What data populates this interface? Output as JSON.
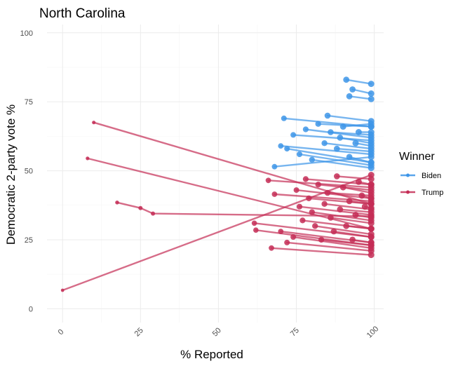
{
  "chart_data": {
    "type": "line",
    "title": "North Carolina",
    "xlabel": "% Reported",
    "ylabel": "Democratic 2-party vote %",
    "xlim": [
      -5,
      103
    ],
    "ylim": [
      -5,
      103
    ],
    "x_ticks": [
      "0",
      "25",
      "50",
      "75",
      "100"
    ],
    "y_ticks": [
      "0",
      "25",
      "50",
      "75",
      "100"
    ],
    "x_tick_rotation_deg": -45,
    "grid": true,
    "legend": {
      "title": "Winner",
      "position": "right",
      "entries": [
        "Biden",
        "Trump"
      ]
    },
    "colors": {
      "Biden": "#3d95e8",
      "Trump": "#c42d56"
    },
    "series": [
      {
        "winner": "Trump",
        "points": [
          [
            0,
            6.7
          ],
          [
            99,
            48.5
          ]
        ]
      },
      {
        "winner": "Trump",
        "points": [
          [
            10,
            67.5
          ],
          [
            99,
            38
          ]
        ]
      },
      {
        "winner": "Trump",
        "points": [
          [
            8,
            54.5
          ],
          [
            99,
            29
          ]
        ]
      },
      {
        "winner": "Trump",
        "points": [
          [
            17.5,
            38.5
          ],
          [
            25,
            36.5
          ],
          [
            29,
            34.5
          ],
          [
            99,
            33.5
          ]
        ]
      },
      {
        "winner": "Trump",
        "points": [
          [
            66,
            46.5
          ],
          [
            99,
            44
          ]
        ]
      },
      {
        "winner": "Trump",
        "points": [
          [
            68,
            41.5
          ],
          [
            99,
            39
          ]
        ]
      },
      {
        "winner": "Trump",
        "points": [
          [
            61.5,
            31
          ],
          [
            99,
            26
          ]
        ]
      },
      {
        "winner": "Trump",
        "points": [
          [
            62,
            28.5
          ],
          [
            99,
            23
          ]
        ]
      },
      {
        "winner": "Trump",
        "points": [
          [
            67,
            22
          ],
          [
            99,
            19.5
          ]
        ]
      },
      {
        "winner": "Trump",
        "points": [
          [
            70,
            28
          ],
          [
            99,
            24
          ]
        ]
      },
      {
        "winner": "Trump",
        "points": [
          [
            72,
            24
          ],
          [
            99,
            21
          ]
        ]
      },
      {
        "winner": "Trump",
        "points": [
          [
            74,
            26
          ],
          [
            99,
            22
          ]
        ]
      },
      {
        "winner": "Trump",
        "points": [
          [
            75,
            43
          ],
          [
            99,
            40
          ]
        ]
      },
      {
        "winner": "Trump",
        "points": [
          [
            76,
            37
          ],
          [
            99,
            34
          ]
        ]
      },
      {
        "winner": "Trump",
        "points": [
          [
            77,
            32
          ],
          [
            99,
            29
          ]
        ]
      },
      {
        "winner": "Trump",
        "points": [
          [
            78,
            47
          ],
          [
            99,
            45
          ]
        ]
      },
      {
        "winner": "Trump",
        "points": [
          [
            79,
            40
          ],
          [
            99,
            38
          ]
        ]
      },
      {
        "winner": "Trump",
        "points": [
          [
            80,
            35
          ],
          [
            99,
            32
          ]
        ]
      },
      {
        "winner": "Trump",
        "points": [
          [
            81,
            30
          ],
          [
            99,
            27
          ]
        ]
      },
      {
        "winner": "Trump",
        "points": [
          [
            82,
            45
          ],
          [
            99,
            43
          ]
        ]
      },
      {
        "winner": "Trump",
        "points": [
          [
            83,
            25
          ],
          [
            99,
            23
          ]
        ]
      },
      {
        "winner": "Trump",
        "points": [
          [
            84,
            38
          ],
          [
            99,
            36
          ]
        ]
      },
      {
        "winner": "Trump",
        "points": [
          [
            85,
            42
          ],
          [
            99,
            41
          ]
        ]
      },
      {
        "winner": "Trump",
        "points": [
          [
            86,
            33
          ],
          [
            99,
            31
          ]
        ]
      },
      {
        "winner": "Trump",
        "points": [
          [
            87,
            28
          ],
          [
            99,
            26
          ]
        ]
      },
      {
        "winner": "Trump",
        "points": [
          [
            88,
            48
          ],
          [
            99,
            47
          ]
        ]
      },
      {
        "winner": "Trump",
        "points": [
          [
            89,
            36
          ],
          [
            99,
            35
          ]
        ]
      },
      {
        "winner": "Trump",
        "points": [
          [
            90,
            44
          ],
          [
            99,
            42
          ]
        ]
      },
      {
        "winner": "Trump",
        "points": [
          [
            91,
            30
          ],
          [
            99,
            29
          ]
        ]
      },
      {
        "winner": "Trump",
        "points": [
          [
            92,
            39
          ],
          [
            99,
            38
          ]
        ]
      },
      {
        "winner": "Trump",
        "points": [
          [
            94,
            34
          ],
          [
            99,
            33
          ]
        ]
      },
      {
        "winner": "Trump",
        "points": [
          [
            95,
            46
          ],
          [
            99,
            45
          ]
        ]
      },
      {
        "winner": "Trump",
        "points": [
          [
            96,
            41
          ],
          [
            99,
            40
          ]
        ]
      },
      {
        "winner": "Trump",
        "points": [
          [
            97,
            37
          ],
          [
            99,
            36.5
          ]
        ]
      },
      {
        "winner": "Trump",
        "points": [
          [
            93,
            25
          ],
          [
            99,
            24
          ]
        ]
      },
      {
        "winner": "Biden",
        "points": [
          [
            71,
            69
          ],
          [
            99,
            66
          ]
        ]
      },
      {
        "winner": "Biden",
        "points": [
          [
            70,
            59
          ],
          [
            99,
            56
          ]
        ]
      },
      {
        "winner": "Biden",
        "points": [
          [
            68,
            51.5
          ],
          [
            99,
            55
          ]
        ]
      },
      {
        "winner": "Biden",
        "points": [
          [
            72,
            58
          ],
          [
            99,
            53
          ]
        ]
      },
      {
        "winner": "Biden",
        "points": [
          [
            74,
            63
          ],
          [
            99,
            61
          ]
        ]
      },
      {
        "winner": "Biden",
        "points": [
          [
            76,
            56
          ],
          [
            99,
            52
          ]
        ]
      },
      {
        "winner": "Biden",
        "points": [
          [
            78,
            65
          ],
          [
            99,
            62
          ]
        ]
      },
      {
        "winner": "Biden",
        "points": [
          [
            80,
            54
          ],
          [
            99,
            51
          ]
        ]
      },
      {
        "winner": "Biden",
        "points": [
          [
            82,
            67
          ],
          [
            99,
            66
          ]
        ]
      },
      {
        "winner": "Biden",
        "points": [
          [
            84,
            60
          ],
          [
            99,
            58
          ]
        ]
      },
      {
        "winner": "Biden",
        "points": [
          [
            85,
            70
          ],
          [
            99,
            68
          ]
        ]
      },
      {
        "winner": "Biden",
        "points": [
          [
            86,
            64
          ],
          [
            99,
            63
          ]
        ]
      },
      {
        "winner": "Biden",
        "points": [
          [
            88,
            58
          ],
          [
            99,
            57
          ]
        ]
      },
      {
        "winner": "Biden",
        "points": [
          [
            89,
            62
          ],
          [
            99,
            60
          ]
        ]
      },
      {
        "winner": "Biden",
        "points": [
          [
            90,
            66
          ],
          [
            99,
            67
          ]
        ]
      },
      {
        "winner": "Biden",
        "points": [
          [
            92,
            55
          ],
          [
            99,
            53
          ]
        ]
      },
      {
        "winner": "Biden",
        "points": [
          [
            94,
            60
          ],
          [
            99,
            59
          ]
        ]
      },
      {
        "winner": "Biden",
        "points": [
          [
            95,
            64
          ],
          [
            99,
            64
          ]
        ]
      },
      {
        "winner": "Biden",
        "points": [
          [
            91,
            83
          ],
          [
            99,
            81.5
          ]
        ]
      },
      {
        "winner": "Biden",
        "points": [
          [
            93,
            79.5
          ],
          [
            99,
            78
          ]
        ]
      },
      {
        "winner": "Biden",
        "points": [
          [
            92,
            77
          ],
          [
            99,
            76
          ]
        ]
      }
    ]
  }
}
